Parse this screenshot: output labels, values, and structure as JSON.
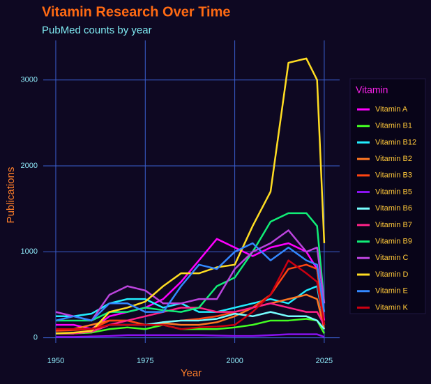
{
  "chart_data": {
    "type": "line",
    "title": "Vitamin Research Over Time",
    "subtitle": "PubMed counts by year",
    "x_label": "Year",
    "y_label": "Publications",
    "legend_title": "Vitamin",
    "legend_position": "right",
    "grid": true,
    "x": [
      1950,
      1955,
      1960,
      1965,
      1970,
      1975,
      1980,
      1985,
      1990,
      1995,
      2000,
      2005,
      2010,
      2015,
      2020,
      2023,
      2025
    ],
    "xlim": [
      1946.5,
      2029.3
    ],
    "xticks": [
      1950,
      1975,
      2000,
      2025
    ],
    "ylim": [
      -60,
      3460
    ],
    "yticks": [
      0,
      1000,
      2000,
      3000
    ],
    "series": [
      {
        "name": "Vitamin A",
        "color": "#ff00ff",
        "values": [
          150,
          150,
          100,
          250,
          300,
          350,
          450,
          650,
          900,
          1150,
          1050,
          950,
          1050,
          1100,
          1000,
          800,
          200
        ]
      },
      {
        "name": "Vitamin B1",
        "color": "#44ff22",
        "values": [
          50,
          50,
          60,
          100,
          120,
          100,
          150,
          100,
          100,
          100,
          120,
          150,
          200,
          200,
          220,
          200,
          50
        ]
      },
      {
        "name": "Vitamin B12",
        "color": "#22eeff",
        "values": [
          250,
          250,
          280,
          400,
          450,
          450,
          350,
          400,
          300,
          300,
          350,
          400,
          450,
          400,
          550,
          600,
          150
        ]
      },
      {
        "name": "Vitamin B2",
        "color": "#ff7722",
        "values": [
          100,
          100,
          150,
          200,
          200,
          150,
          170,
          150,
          150,
          180,
          250,
          350,
          400,
          450,
          500,
          450,
          100
        ]
      },
      {
        "name": "Vitamin B3",
        "color": "#ff4411",
        "values": [
          80,
          90,
          100,
          200,
          200,
          150,
          180,
          200,
          220,
          250,
          300,
          350,
          500,
          800,
          850,
          800,
          150
        ]
      },
      {
        "name": "Vitamin B5",
        "color": "#8811ee",
        "values": [
          10,
          10,
          15,
          20,
          30,
          30,
          30,
          30,
          30,
          25,
          20,
          20,
          30,
          40,
          40,
          40,
          10
        ]
      },
      {
        "name": "Vitamin B6",
        "color": "#77ffff",
        "values": [
          50,
          50,
          70,
          150,
          150,
          150,
          180,
          200,
          200,
          220,
          280,
          250,
          300,
          250,
          250,
          200,
          100
        ]
      },
      {
        "name": "Vitamin B7",
        "color": "#ff2288",
        "values": [
          50,
          50,
          70,
          150,
          200,
          250,
          300,
          350,
          350,
          300,
          300,
          350,
          400,
          350,
          300,
          300,
          150
        ]
      },
      {
        "name": "Vitamin B9",
        "color": "#11ee77",
        "values": [
          200,
          200,
          200,
          300,
          300,
          350,
          320,
          300,
          350,
          600,
          700,
          1000,
          1350,
          1450,
          1450,
          1300,
          400
        ]
      },
      {
        "name": "Vitamin C",
        "color": "#bb44dd",
        "values": [
          300,
          250,
          200,
          500,
          600,
          550,
          400,
          400,
          450,
          450,
          800,
          1000,
          1100,
          1250,
          1000,
          1050,
          400
        ]
      },
      {
        "name": "Vitamin D",
        "color": "#ffdd22",
        "values": [
          50,
          60,
          80,
          300,
          350,
          420,
          600,
          750,
          750,
          820,
          850,
          1300,
          1700,
          3200,
          3250,
          3000,
          1100
        ]
      },
      {
        "name": "Vitamin E",
        "color": "#3388ff",
        "values": [
          200,
          250,
          200,
          400,
          400,
          300,
          300,
          600,
          850,
          800,
          1000,
          1100,
          900,
          1050,
          900,
          850,
          300
        ]
      },
      {
        "name": "Vitamin K",
        "color": "#cc0011",
        "values": [
          100,
          100,
          100,
          150,
          150,
          150,
          150,
          100,
          120,
          130,
          150,
          300,
          500,
          900,
          750,
          650,
          150
        ]
      }
    ]
  }
}
